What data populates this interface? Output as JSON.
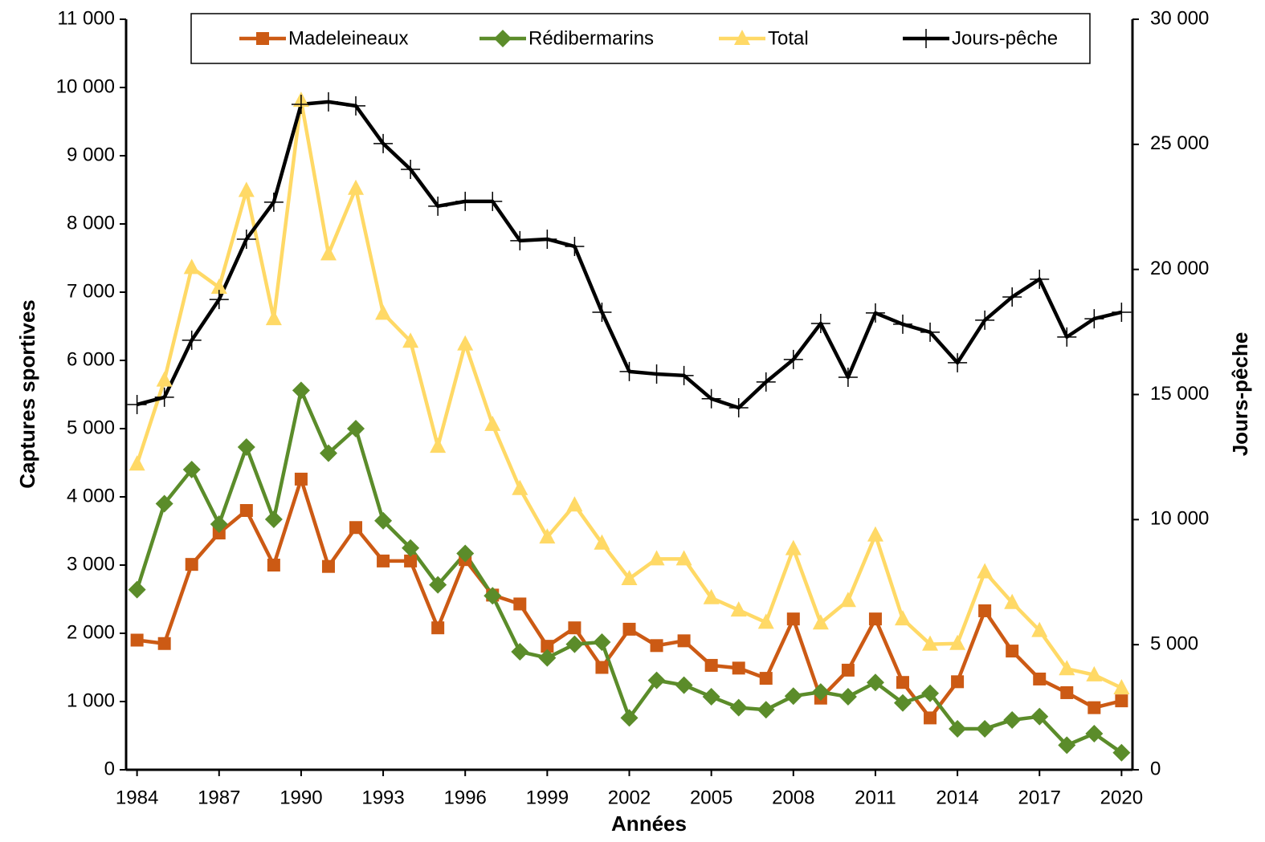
{
  "chart_data": {
    "type": "line",
    "x_label": "Années",
    "y_label": "Captures sportives",
    "y2_label": "Jours-pêche",
    "x": [
      1984,
      1985,
      1986,
      1987,
      1988,
      1989,
      1990,
      1991,
      1992,
      1993,
      1994,
      1995,
      1996,
      1997,
      1998,
      1999,
      2000,
      2001,
      2002,
      2003,
      2004,
      2005,
      2006,
      2007,
      2008,
      2009,
      2010,
      2011,
      2012,
      2013,
      2014,
      2015,
      2016,
      2017,
      2018,
      2019,
      2020
    ],
    "xlim": [
      1983.6,
      2020.4
    ],
    "xticks": [
      1984,
      1987,
      1990,
      1993,
      1996,
      1999,
      2002,
      2005,
      2008,
      2011,
      2014,
      2017,
      2020
    ],
    "ylim": [
      0,
      11000
    ],
    "yticks": [
      0,
      {
        "value": 1000,
        "label": "1 000"
      },
      {
        "value": 2000,
        "label": "2 000"
      },
      {
        "value": 3000,
        "label": "3 000"
      },
      {
        "value": 4000,
        "label": "4 000"
      },
      {
        "value": 5000,
        "label": "5 000"
      },
      {
        "value": 6000,
        "label": "6 000"
      },
      {
        "value": 7000,
        "label": "7 000"
      },
      {
        "value": 8000,
        "label": "8 000"
      },
      {
        "value": 9000,
        "label": "9 000"
      },
      {
        "value": 10000,
        "label": "10 000"
      },
      {
        "value": 11000,
        "label": "11 000"
      }
    ],
    "y2lim": [
      0,
      30000
    ],
    "y2ticks": [
      0,
      {
        "value": 5000,
        "label": "5 000"
      },
      {
        "value": 10000,
        "label": "10 000"
      },
      {
        "value": 15000,
        "label": "15 000"
      },
      {
        "value": 20000,
        "label": "20 000"
      },
      {
        "value": 25000,
        "label": "25 000"
      },
      {
        "value": 30000,
        "label": "30 000"
      }
    ],
    "legend": "top",
    "series": [
      {
        "name": "Madeleineaux",
        "color": "#CC5A14",
        "marker": "square",
        "values": [
          1900,
          1850,
          3010,
          3470,
          3800,
          3000,
          4260,
          2980,
          3550,
          3060,
          3060,
          2080,
          3080,
          2560,
          2430,
          1810,
          2080,
          1500,
          2060,
          1820,
          1890,
          1530,
          1490,
          1340,
          2210,
          1050,
          1460,
          2210,
          1280,
          760,
          1290,
          2330,
          1740,
          1330,
          1130,
          910,
          1010
        ]
      },
      {
        "name": "Rédibermarins",
        "color": "#5B8C2A",
        "marker": "diamond",
        "values": [
          2640,
          3900,
          4400,
          3600,
          4730,
          3670,
          5560,
          4640,
          5000,
          3650,
          3250,
          2710,
          3170,
          2550,
          1730,
          1640,
          1840,
          1870,
          760,
          1310,
          1240,
          1070,
          910,
          880,
          1080,
          1140,
          1070,
          1280,
          980,
          1120,
          600,
          600,
          730,
          780,
          360,
          530,
          250
        ]
      },
      {
        "name": "Total",
        "color": "#FFD966",
        "marker": "triangle",
        "values": [
          4480,
          5710,
          7360,
          7070,
          8490,
          6610,
          9810,
          7560,
          8520,
          6690,
          6280,
          4740,
          6240,
          5060,
          4120,
          3410,
          3880,
          3320,
          2800,
          3090,
          3090,
          2520,
          2340,
          2160,
          3240,
          2150,
          2480,
          3440,
          2210,
          1840,
          1850,
          2900,
          2450,
          2040,
          1480,
          1390,
          1200
        ]
      },
      {
        "name": "Jours-pêche",
        "color": "#000000",
        "marker": "plus",
        "axis": "y2",
        "values": [
          14600,
          14890,
          17170,
          18800,
          21210,
          22690,
          26600,
          26700,
          26540,
          25030,
          24000,
          22530,
          22720,
          22720,
          21150,
          21210,
          20920,
          18290,
          15920,
          15820,
          15760,
          14830,
          14470,
          15500,
          16400,
          17840,
          15690,
          18260,
          17810,
          17490,
          16270,
          17970,
          18900,
          19610,
          17300,
          18030,
          18290
        ]
      }
    ]
  }
}
